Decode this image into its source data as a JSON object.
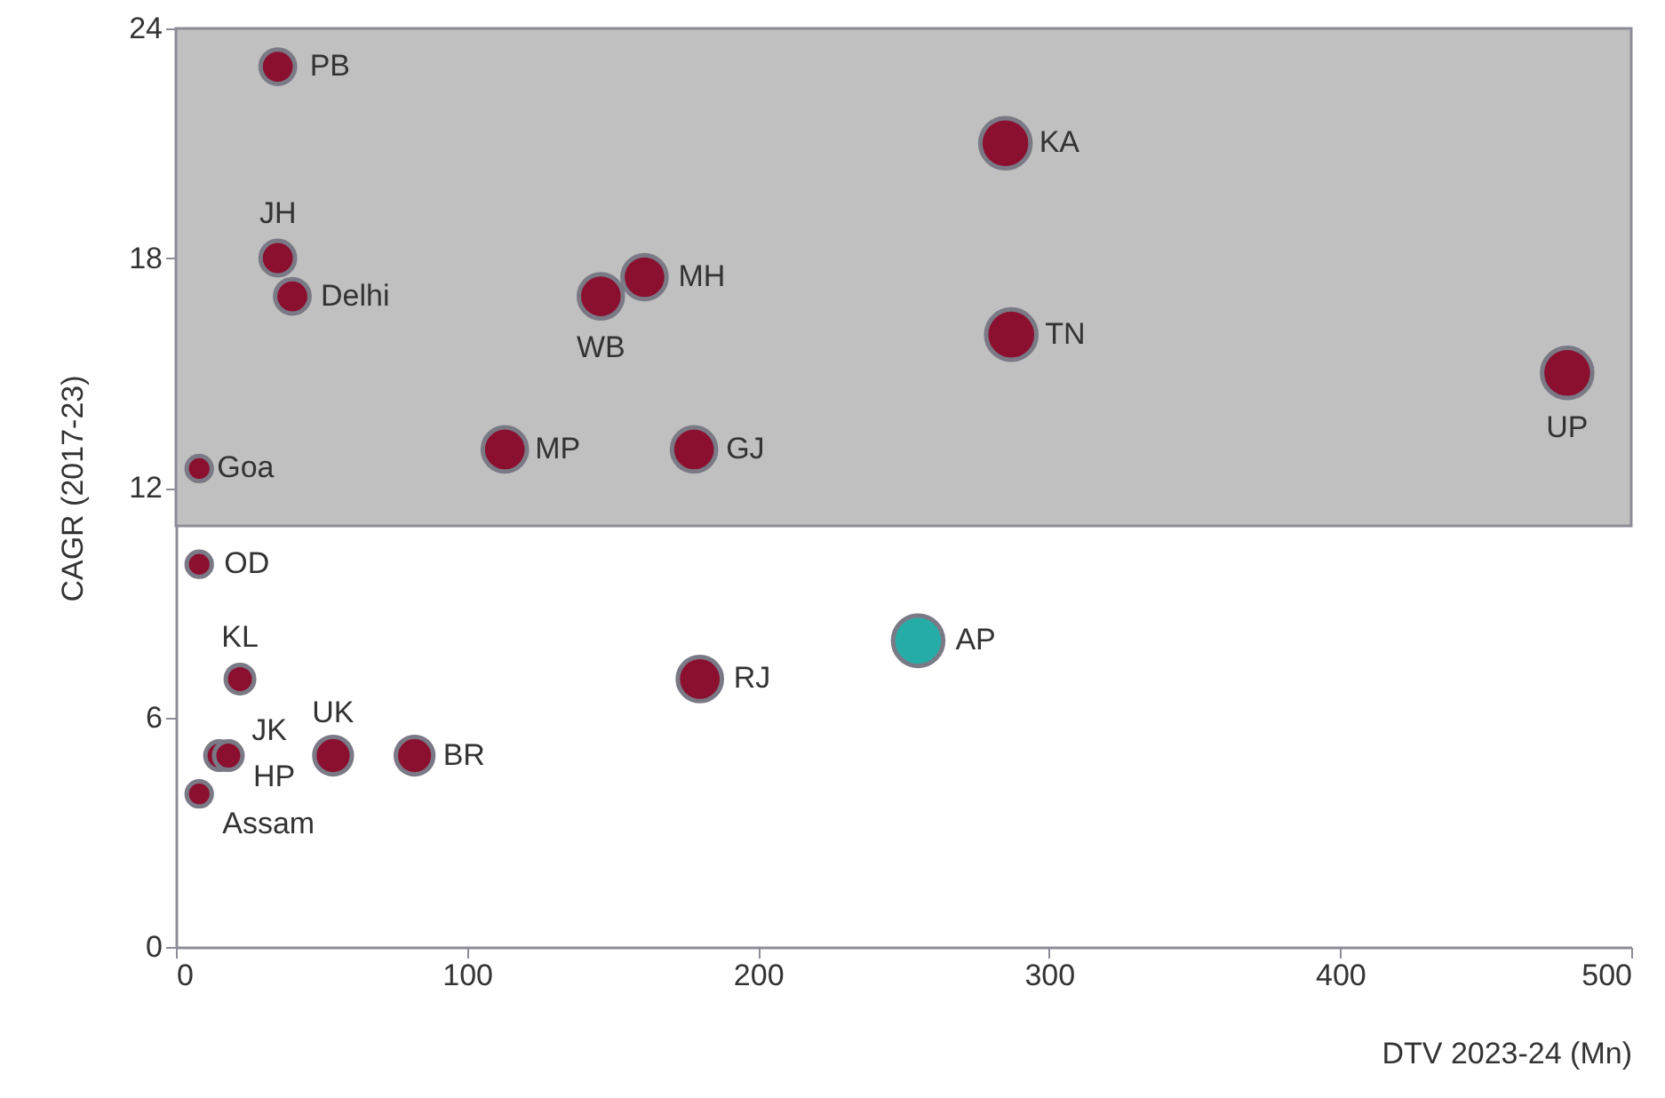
{
  "chart_data": {
    "type": "bubble",
    "xlabel": "DTV 2023-24 (Mn)",
    "ylabel": "CAGR (2017-23)",
    "xlim": [
      0,
      500
    ],
    "xticks": [
      0,
      100,
      200,
      300,
      400,
      500
    ],
    "ylim": [
      0,
      24
    ],
    "yticks": [
      0,
      6,
      12,
      18,
      24
    ],
    "grid": false,
    "bands": [
      {
        "axis": "y",
        "from": 11,
        "to": 24,
        "color": "#c0c0c0"
      }
    ],
    "series": [
      {
        "color": "#8b1030",
        "x": [
          35,
          35,
          40,
          8,
          113,
          178,
          146,
          161,
          285,
          287,
          478,
          8,
          22,
          15,
          18,
          54,
          82,
          8,
          180
        ],
        "values": [
          23,
          18,
          17,
          12.5,
          13,
          13,
          17,
          17.5,
          21,
          16,
          15,
          10,
          7,
          5,
          5,
          5,
          5,
          4,
          7
        ],
        "sizes": [
          0.47,
          0.47,
          0.47,
          0.25,
          0.77,
          0.77,
          0.77,
          0.77,
          1,
          1,
          1,
          0.25,
          0.32,
          0.32,
          0.32,
          0.56,
          0.56,
          0.25,
          0.77
        ]
      },
      {
        "color": "#26aca6",
        "x": [
          255
        ],
        "values": [
          8
        ],
        "sizes": [
          1
        ]
      }
    ],
    "annotations": [
      {
        "text": "PB",
        "x": 35,
        "y": 23
      },
      {
        "text": "JH",
        "x": 35,
        "y": 18
      },
      {
        "text": "Delhi",
        "x": 40,
        "y": 17
      },
      {
        "text": "Goa",
        "x": 8,
        "y": 12.5
      },
      {
        "text": "MP",
        "x": 113,
        "y": 13
      },
      {
        "text": "GJ",
        "x": 178,
        "y": 13
      },
      {
        "text": "WB",
        "x": 146,
        "y": 17
      },
      {
        "text": "MH",
        "x": 161,
        "y": 17.5
      },
      {
        "text": "KA",
        "x": 285,
        "y": 21
      },
      {
        "text": "TN",
        "x": 287,
        "y": 16
      },
      {
        "text": "UP",
        "x": 478,
        "y": 15
      },
      {
        "text": "OD",
        "x": 8,
        "y": 10
      },
      {
        "text": "KL",
        "x": 22,
        "y": 7
      },
      {
        "text": "JK",
        "x": 15,
        "y": 5
      },
      {
        "text": "HP",
        "x": 18,
        "y": 5
      },
      {
        "text": "UK",
        "x": 54,
        "y": 5
      },
      {
        "text": "BR",
        "x": 82,
        "y": 5
      },
      {
        "text": "Assam",
        "x": 8,
        "y": 4
      },
      {
        "text": "RJ",
        "x": 180,
        "y": 7
      },
      {
        "text": "AP",
        "x": 255,
        "y": 8
      }
    ]
  }
}
